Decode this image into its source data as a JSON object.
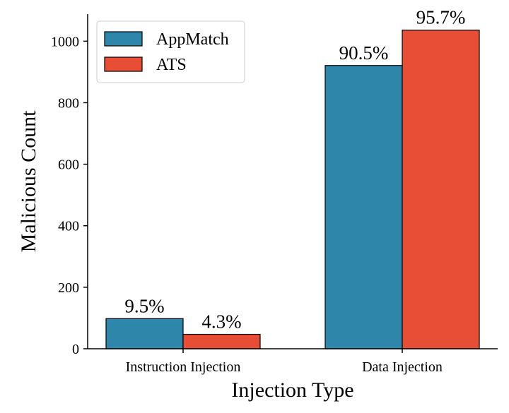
{
  "chart_data": {
    "type": "bar",
    "title": "",
    "xlabel": "Injection Type",
    "ylabel": "Malicious Count",
    "categories": [
      "Instruction Injection",
      "Data Injection"
    ],
    "series": [
      {
        "name": "AppMatch",
        "color": "#2e86ab",
        "values": [
          98,
          921
        ],
        "labels": [
          "9.5%",
          "90.5%"
        ]
      },
      {
        "name": "ATS",
        "color": "#e84e35",
        "values": [
          47,
          1036
        ],
        "labels": [
          "4.3%",
          "95.7%"
        ]
      }
    ],
    "ylim": [
      0,
      1088
    ],
    "yticks": [
      0,
      200,
      400,
      600,
      800,
      1000
    ],
    "grid": false,
    "legend_position": "top-left"
  }
}
